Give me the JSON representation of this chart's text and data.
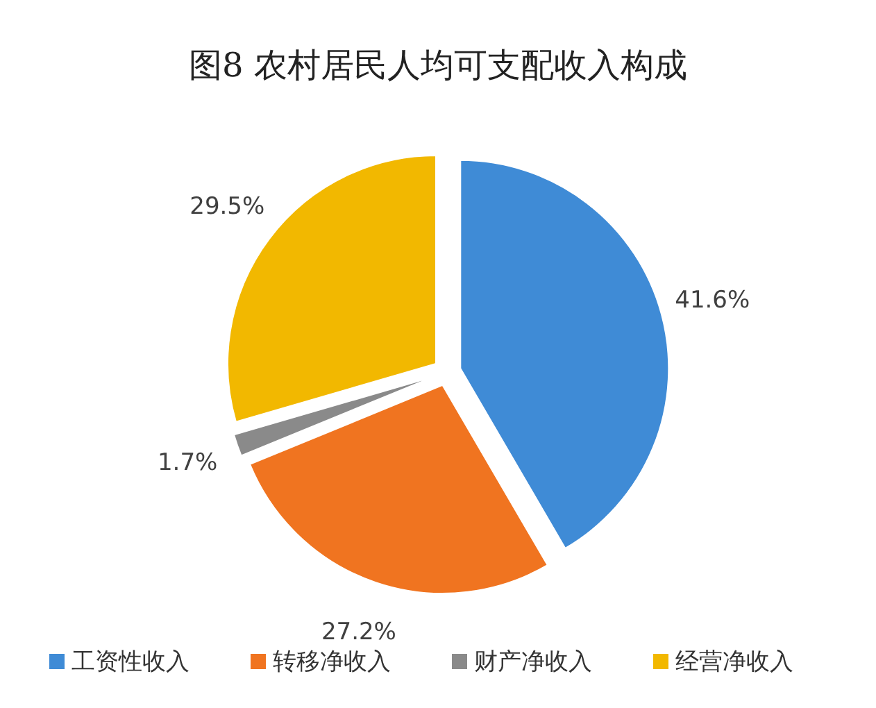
{
  "chart_data": {
    "type": "pie",
    "title": "图8  农村居民人均可支配收入构成",
    "categories": [
      "工资性收入",
      "转移净收入",
      "财产净收入",
      "经营净收入"
    ],
    "values": [
      41.6,
      27.2,
      1.7,
      29.5
    ],
    "colors": [
      "#3f8bd6",
      "#f07420",
      "#8a8a8a",
      "#f2b800"
    ],
    "value_labels": [
      "41.6%",
      "27.2%",
      "1.7%",
      "29.5%"
    ],
    "legend": "bottom"
  }
}
